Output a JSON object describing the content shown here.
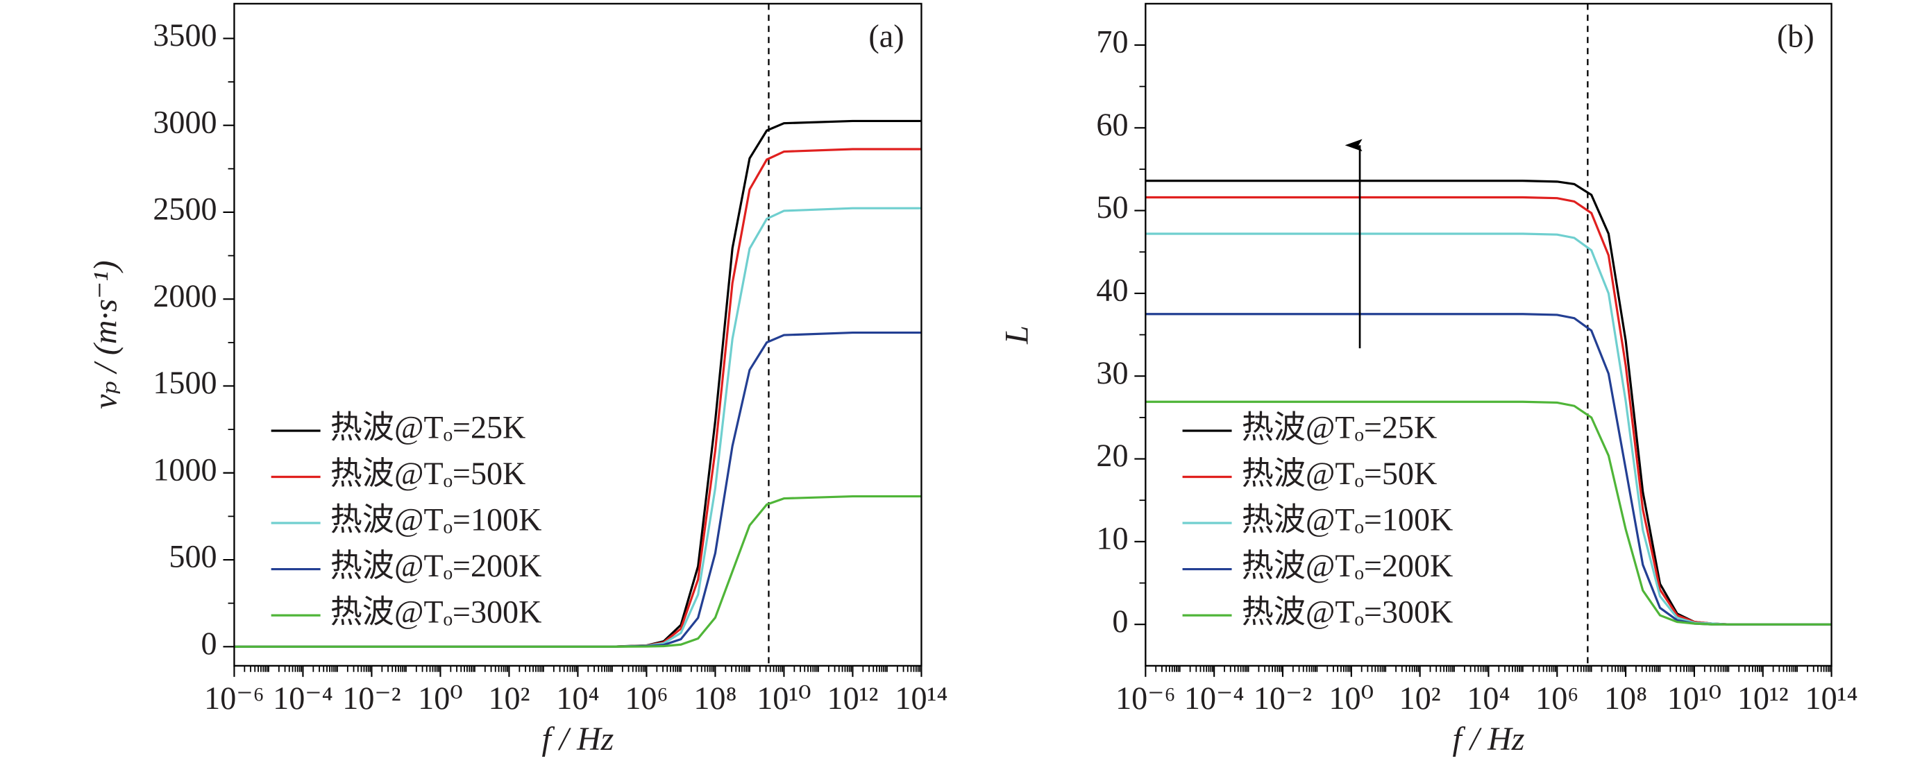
{
  "chart_data": [
    {
      "type": "line",
      "annotation": "(a)",
      "x_label": "f / Hz",
      "y_label": "vₚ / (m·s⁻¹)",
      "xscale": "log",
      "legend": "lower left",
      "reference_line_x": 3600000000,
      "xlim": [
        1e-06,
        100000000000000
      ],
      "ylim": [
        -110,
        3700
      ],
      "xticks": [
        {
          "value": 1e-06,
          "label": "10⁻⁶"
        },
        {
          "value": 0.0001,
          "label": "10⁻⁴"
        },
        {
          "value": 0.01,
          "label": "10⁻²"
        },
        {
          "value": 1,
          "label": "10⁰"
        },
        {
          "value": 100,
          "label": "10²"
        },
        {
          "value": 10000,
          "label": "10⁴"
        },
        {
          "value": 1000000,
          "label": "10⁶"
        },
        {
          "value": 100000000,
          "label": "10⁸"
        },
        {
          "value": 10000000000,
          "label": "10¹⁰"
        },
        {
          "value": 1000000000000,
          "label": "10¹²"
        },
        {
          "value": 100000000000000,
          "label": "10¹⁴"
        }
      ],
      "yticks": [
        0,
        500,
        1000,
        1500,
        2000,
        2500,
        3000,
        3500
      ],
      "x": [
        1e-06,
        0.0001,
        0.01,
        1,
        100,
        10000,
        100000,
        1000000,
        3162278,
        10000000,
        31622777,
        100000000,
        316227766,
        1000000000,
        3162277660,
        10000000000,
        1000000000000,
        100000000000000
      ],
      "series": [
        {
          "name": "热波@Tₒ=25K",
          "color": "#000000",
          "values": [
            0,
            0,
            0,
            0,
            0,
            0,
            0,
            7,
            31,
            125,
            463,
            1298,
            2293,
            2810,
            2970,
            3012,
            3025,
            3025
          ]
        },
        {
          "name": "热波@Tₒ=50K",
          "color": "#e0201f",
          "values": [
            0,
            0,
            0,
            0,
            0,
            0,
            0,
            6,
            25,
            103,
            387,
            1128,
            2093,
            2631,
            2803,
            2849,
            2863,
            2863
          ]
        },
        {
          "name": "热波@Tₒ=100K",
          "color": "#6fcfcf",
          "values": [
            0,
            0,
            0,
            0,
            0,
            0,
            0,
            5,
            19,
            79,
            300,
            911,
            1771,
            2291,
            2462,
            2508,
            2523,
            2523
          ]
        },
        {
          "name": "热波@Tₒ=200K",
          "color": "#233f93",
          "values": [
            0,
            0,
            0,
            0,
            0,
            0,
            0,
            3,
            10,
            43,
            166,
            538,
            1155,
            1592,
            1751,
            1793,
            1807,
            1807
          ]
        },
        {
          "name": "热波@Tₒ=300K",
          "color": "#4fb538",
          "values": [
            0,
            0,
            0,
            0,
            0,
            0,
            0,
            1,
            3,
            12,
            47,
            167,
            433,
            698,
            818,
            853,
            865,
            865
          ]
        }
      ]
    },
    {
      "type": "line",
      "annotation": "(b)",
      "x_label": "f / Hz",
      "y_label": "L",
      "xscale": "log",
      "legend": "lower left",
      "reference_line_x": 7800000,
      "xlim": [
        1e-06,
        100000000000000
      ],
      "ylim": [
        -5,
        75
      ],
      "xticks": [
        {
          "value": 1e-06,
          "label": "10⁻⁶"
        },
        {
          "value": 0.0001,
          "label": "10⁻⁴"
        },
        {
          "value": 0.01,
          "label": "10⁻²"
        },
        {
          "value": 1,
          "label": "10⁰"
        },
        {
          "value": 100,
          "label": "10²"
        },
        {
          "value": 10000,
          "label": "10⁴"
        },
        {
          "value": 1000000,
          "label": "10⁶"
        },
        {
          "value": 100000000,
          "label": "10⁸"
        },
        {
          "value": 10000000000,
          "label": "10¹⁰"
        },
        {
          "value": 1000000000000,
          "label": "10¹²"
        },
        {
          "value": 100000000000000,
          "label": "10¹⁴"
        }
      ],
      "yticks": [
        0,
        10,
        20,
        30,
        40,
        50,
        60,
        70
      ],
      "x": [
        1e-06,
        0.0001,
        0.01,
        1,
        100,
        10000,
        100000,
        1000000,
        3162278,
        10000000,
        31622777,
        100000000,
        316227766,
        1000000000,
        3162277660,
        10000000000,
        31622776602,
        100000000000,
        1000000000000,
        100000000000000
      ],
      "series": [
        {
          "name": "热波@Tₒ=25K",
          "color": "#000000",
          "values": [
            53.6,
            53.6,
            53.6,
            53.6,
            53.6,
            53.6,
            53.6,
            53.5,
            53.2,
            51.9,
            47.2,
            34.3,
            16.0,
            4.9,
            1.3,
            0.3,
            0.1,
            0,
            0,
            0
          ]
        },
        {
          "name": "热波@Tₒ=50K",
          "color": "#e0201f",
          "values": [
            51.6,
            51.6,
            51.6,
            51.6,
            51.6,
            51.6,
            51.6,
            51.5,
            51.1,
            49.7,
            44.6,
            31.3,
            13.9,
            4.2,
            1.1,
            0.3,
            0.1,
            0,
            0,
            0
          ]
        },
        {
          "name": "热波@Tₒ=100K",
          "color": "#6fcfcf",
          "values": [
            47.2,
            47.2,
            47.2,
            47.2,
            47.2,
            47.2,
            47.2,
            47.1,
            46.7,
            45.2,
            40.0,
            27.0,
            11.4,
            3.4,
            0.8,
            0.2,
            0.1,
            0,
            0,
            0
          ]
        },
        {
          "name": "热波@Tₒ=200K",
          "color": "#233f93",
          "values": [
            37.5,
            37.5,
            37.5,
            37.5,
            37.5,
            37.5,
            37.5,
            37.4,
            37.0,
            35.5,
            30.3,
            18.8,
            7.2,
            2.0,
            0.5,
            0.1,
            0,
            0,
            0,
            0
          ]
        },
        {
          "name": "热波@Tₒ=300K",
          "color": "#4fb538",
          "values": [
            26.9,
            26.9,
            26.9,
            26.9,
            26.9,
            26.9,
            26.9,
            26.8,
            26.4,
            25.0,
            20.4,
            11.5,
            4.1,
            1.1,
            0.3,
            0.1,
            0,
            0,
            0,
            0
          ]
        }
      ]
    }
  ]
}
